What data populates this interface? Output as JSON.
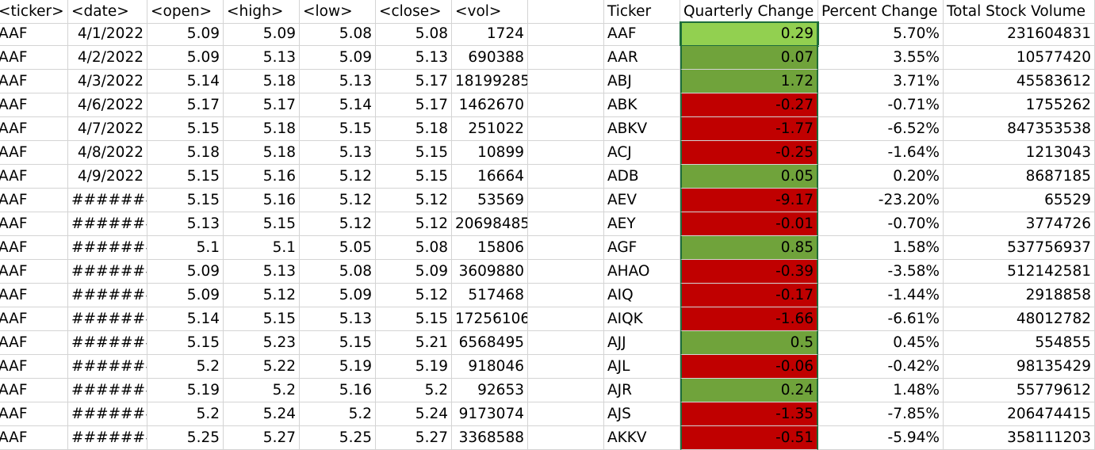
{
  "colors": {
    "positive": "#70a33b",
    "positive_selected": "#92d050",
    "negative": "#c00000",
    "gridline": "#d4d4d4",
    "selection_border": "#1e6d3b"
  },
  "left_table": {
    "headers": [
      "<ticker>",
      "<date>",
      "<open>",
      "<high>",
      "<low>",
      "<close>",
      "<vol>"
    ],
    "rows": [
      [
        "AAF",
        "4/1/2022",
        "5.09",
        "5.09",
        "5.08",
        "5.08",
        "1724"
      ],
      [
        "AAF",
        "4/2/2022",
        "5.09",
        "5.13",
        "5.09",
        "5.13",
        "690388"
      ],
      [
        "AAF",
        "4/3/2022",
        "5.14",
        "5.18",
        "5.13",
        "5.17",
        "18199285"
      ],
      [
        "AAF",
        "4/6/2022",
        "5.17",
        "5.17",
        "5.14",
        "5.17",
        "1462670"
      ],
      [
        "AAF",
        "4/7/2022",
        "5.15",
        "5.18",
        "5.15",
        "5.18",
        "251022"
      ],
      [
        "AAF",
        "4/8/2022",
        "5.18",
        "5.18",
        "5.13",
        "5.15",
        "10899"
      ],
      [
        "AAF",
        "4/9/2022",
        "5.15",
        "5.16",
        "5.12",
        "5.15",
        "16664"
      ],
      [
        "AAF",
        "########",
        "5.15",
        "5.16",
        "5.12",
        "5.12",
        "53569"
      ],
      [
        "AAF",
        "########",
        "5.13",
        "5.15",
        "5.12",
        "5.12",
        "20698485"
      ],
      [
        "AAF",
        "########",
        "5.1",
        "5.1",
        "5.05",
        "5.08",
        "15806"
      ],
      [
        "AAF",
        "########",
        "5.09",
        "5.13",
        "5.08",
        "5.09",
        "3609880"
      ],
      [
        "AAF",
        "########",
        "5.09",
        "5.12",
        "5.09",
        "5.12",
        "517468"
      ],
      [
        "AAF",
        "########",
        "5.14",
        "5.15",
        "5.13",
        "5.15",
        "17256106"
      ],
      [
        "AAF",
        "########",
        "5.15",
        "5.23",
        "5.15",
        "5.21",
        "6568495"
      ],
      [
        "AAF",
        "########",
        "5.2",
        "5.22",
        "5.19",
        "5.19",
        "918046"
      ],
      [
        "AAF",
        "########",
        "5.19",
        "5.2",
        "5.16",
        "5.2",
        "92653"
      ],
      [
        "AAF",
        "########",
        "5.2",
        "5.24",
        "5.2",
        "5.24",
        "9173074"
      ],
      [
        "AAF",
        "########",
        "5.25",
        "5.27",
        "5.25",
        "5.27",
        "3368588"
      ]
    ]
  },
  "right_table": {
    "headers": [
      "Ticker",
      "Quarterly Change",
      "Percent Change",
      "Total Stock Volume"
    ],
    "rows": [
      {
        "ticker": "AAF",
        "change": "0.29",
        "percent": "5.70%",
        "volume": "231604831",
        "status": "positive_selected"
      },
      {
        "ticker": "AAR",
        "change": "0.07",
        "percent": "3.55%",
        "volume": "10577420",
        "status": "positive"
      },
      {
        "ticker": "ABJ",
        "change": "1.72",
        "percent": "3.71%",
        "volume": "45583612",
        "status": "positive"
      },
      {
        "ticker": "ABK",
        "change": "-0.27",
        "percent": "-0.71%",
        "volume": "1755262",
        "status": "negative"
      },
      {
        "ticker": "ABKV",
        "change": "-1.77",
        "percent": "-6.52%",
        "volume": "847353538",
        "status": "negative"
      },
      {
        "ticker": "ACJ",
        "change": "-0.25",
        "percent": "-1.64%",
        "volume": "1213043",
        "status": "negative"
      },
      {
        "ticker": "ADB",
        "change": "0.05",
        "percent": "0.20%",
        "volume": "8687185",
        "status": "positive"
      },
      {
        "ticker": "AEV",
        "change": "-9.17",
        "percent": "-23.20%",
        "volume": "65529",
        "status": "negative"
      },
      {
        "ticker": "AEY",
        "change": "-0.01",
        "percent": "-0.70%",
        "volume": "3774726",
        "status": "negative"
      },
      {
        "ticker": "AGF",
        "change": "0.85",
        "percent": "1.58%",
        "volume": "537756937",
        "status": "positive"
      },
      {
        "ticker": "AHAO",
        "change": "-0.39",
        "percent": "-3.58%",
        "volume": "512142581",
        "status": "negative"
      },
      {
        "ticker": "AIQ",
        "change": "-0.17",
        "percent": "-1.44%",
        "volume": "2918858",
        "status": "negative"
      },
      {
        "ticker": "AIQK",
        "change": "-1.66",
        "percent": "-6.61%",
        "volume": "48012782",
        "status": "negative"
      },
      {
        "ticker": "AJJ",
        "change": "0.5",
        "percent": "0.45%",
        "volume": "554855",
        "status": "positive"
      },
      {
        "ticker": "AJL",
        "change": "-0.06",
        "percent": "-0.42%",
        "volume": "98135429",
        "status": "negative"
      },
      {
        "ticker": "AJR",
        "change": "0.24",
        "percent": "1.48%",
        "volume": "55779612",
        "status": "positive"
      },
      {
        "ticker": "AJS",
        "change": "-1.35",
        "percent": "-7.85%",
        "volume": "206474415",
        "status": "negative"
      },
      {
        "ticker": "AKKV",
        "change": "-0.51",
        "percent": "-5.94%",
        "volume": "358111203",
        "status": "negative"
      }
    ]
  }
}
